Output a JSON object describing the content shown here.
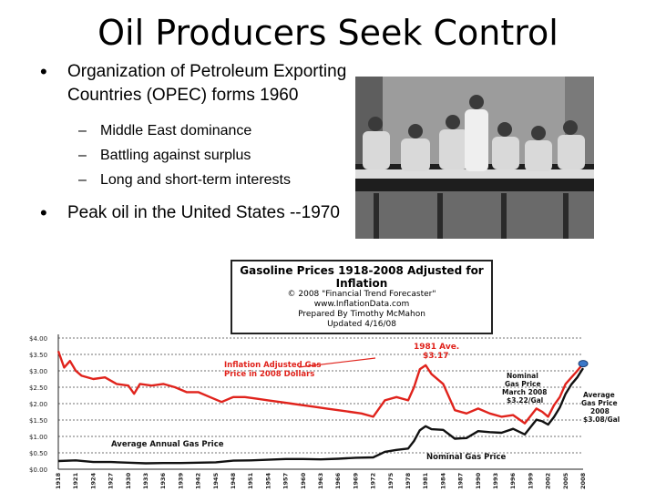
{
  "slide": {
    "title": "Oil Producers Seek Control",
    "bullet1": "Organization of Petroleum Exporting Countries (OPEC) forms 1960",
    "sub_bullets": [
      "Middle East dominance",
      "Battling against surplus",
      "Long and short-term interests"
    ],
    "bullet2": "Peak oil in the United States --1970"
  },
  "chart_data": {
    "type": "line",
    "title": "Gasoline Prices 1918-2008 Adjusted for Inflation",
    "credits": [
      "© 2008 \"Financial Trend Forecaster\"",
      "www.InflationData.com",
      "Prepared By Timothy McMahon",
      "Updated 4/16/08"
    ],
    "y_tick_labels": [
      "$4.00",
      "$3.50",
      "$3.00",
      "$2.50",
      "$2.00",
      "$1.50",
      "$1.00",
      "$0.50",
      "$0.00"
    ],
    "ylim": [
      0,
      4
    ],
    "x_tick_labels": [
      "1918",
      "1921",
      "1924",
      "1927",
      "1930",
      "1933",
      "1936",
      "1939",
      "1942",
      "1945",
      "1948",
      "1951",
      "1954",
      "1957",
      "1960",
      "1963",
      "1966",
      "1969",
      "1972",
      "1975",
      "1978",
      "1981",
      "1984",
      "1987",
      "1990",
      "1993",
      "1996",
      "1999",
      "2002",
      "2005",
      "2008"
    ],
    "annotations": {
      "peak": "1981 Ave. $3.17",
      "inflation_label": "Inflation Adjusted Gas Price in 2008 Dollars",
      "nominal_march": "Nominal Gas Price March 2008 $3.22/Gal",
      "average_2008": "Average Gas Price 2008 $3.08/Gal",
      "average_annual": "Average Annual Gas Price",
      "nominal": "Nominal Gas Price"
    },
    "series": [
      {
        "name": "Inflation Adjusted Gas Price",
        "color": "#e0231c",
        "points": [
          [
            1918,
            3.6
          ],
          [
            1919,
            3.1
          ],
          [
            1920,
            3.3
          ],
          [
            1921,
            3.0
          ],
          [
            1922,
            2.85
          ],
          [
            1924,
            2.75
          ],
          [
            1926,
            2.8
          ],
          [
            1928,
            2.6
          ],
          [
            1930,
            2.55
          ],
          [
            1931,
            2.3
          ],
          [
            1932,
            2.6
          ],
          [
            1934,
            2.55
          ],
          [
            1936,
            2.6
          ],
          [
            1938,
            2.5
          ],
          [
            1940,
            2.35
          ],
          [
            1942,
            2.35
          ],
          [
            1944,
            2.2
          ],
          [
            1946,
            2.05
          ],
          [
            1948,
            2.2
          ],
          [
            1950,
            2.2
          ],
          [
            1952,
            2.15
          ],
          [
            1954,
            2.1
          ],
          [
            1956,
            2.05
          ],
          [
            1958,
            2.0
          ],
          [
            1960,
            1.95
          ],
          [
            1962,
            1.9
          ],
          [
            1964,
            1.85
          ],
          [
            1966,
            1.8
          ],
          [
            1968,
            1.75
          ],
          [
            1970,
            1.7
          ],
          [
            1972,
            1.6
          ],
          [
            1974,
            2.1
          ],
          [
            1976,
            2.2
          ],
          [
            1978,
            2.1
          ],
          [
            1979,
            2.5
          ],
          [
            1980,
            3.05
          ],
          [
            1981,
            3.17
          ],
          [
            1982,
            2.9
          ],
          [
            1984,
            2.6
          ],
          [
            1986,
            1.8
          ],
          [
            1988,
            1.7
          ],
          [
            1990,
            1.85
          ],
          [
            1992,
            1.7
          ],
          [
            1994,
            1.6
          ],
          [
            1996,
            1.65
          ],
          [
            1998,
            1.4
          ],
          [
            2000,
            1.85
          ],
          [
            2001,
            1.75
          ],
          [
            2002,
            1.6
          ],
          [
            2003,
            1.95
          ],
          [
            2004,
            2.2
          ],
          [
            2005,
            2.6
          ],
          [
            2006,
            2.8
          ],
          [
            2007,
            3.0
          ],
          [
            2008,
            3.22
          ]
        ]
      },
      {
        "name": "Nominal Gas Price",
        "color": "#111111",
        "points": [
          [
            1918,
            0.25
          ],
          [
            1921,
            0.27
          ],
          [
            1924,
            0.22
          ],
          [
            1927,
            0.22
          ],
          [
            1930,
            0.2
          ],
          [
            1933,
            0.18
          ],
          [
            1936,
            0.19
          ],
          [
            1939,
            0.19
          ],
          [
            1942,
            0.2
          ],
          [
            1945,
            0.21
          ],
          [
            1948,
            0.26
          ],
          [
            1951,
            0.27
          ],
          [
            1954,
            0.29
          ],
          [
            1957,
            0.31
          ],
          [
            1960,
            0.31
          ],
          [
            1963,
            0.3
          ],
          [
            1966,
            0.32
          ],
          [
            1969,
            0.35
          ],
          [
            1972,
            0.36
          ],
          [
            1974,
            0.53
          ],
          [
            1976,
            0.59
          ],
          [
            1978,
            0.63
          ],
          [
            1979,
            0.86
          ],
          [
            1980,
            1.19
          ],
          [
            1981,
            1.31
          ],
          [
            1982,
            1.22
          ],
          [
            1984,
            1.2
          ],
          [
            1986,
            0.93
          ],
          [
            1988,
            0.95
          ],
          [
            1990,
            1.16
          ],
          [
            1992,
            1.13
          ],
          [
            1994,
            1.11
          ],
          [
            1996,
            1.23
          ],
          [
            1998,
            1.06
          ],
          [
            2000,
            1.51
          ],
          [
            2001,
            1.46
          ],
          [
            2002,
            1.36
          ],
          [
            2003,
            1.59
          ],
          [
            2004,
            1.88
          ],
          [
            2005,
            2.3
          ],
          [
            2006,
            2.59
          ],
          [
            2007,
            2.8
          ],
          [
            2008,
            3.08
          ]
        ]
      }
    ]
  }
}
